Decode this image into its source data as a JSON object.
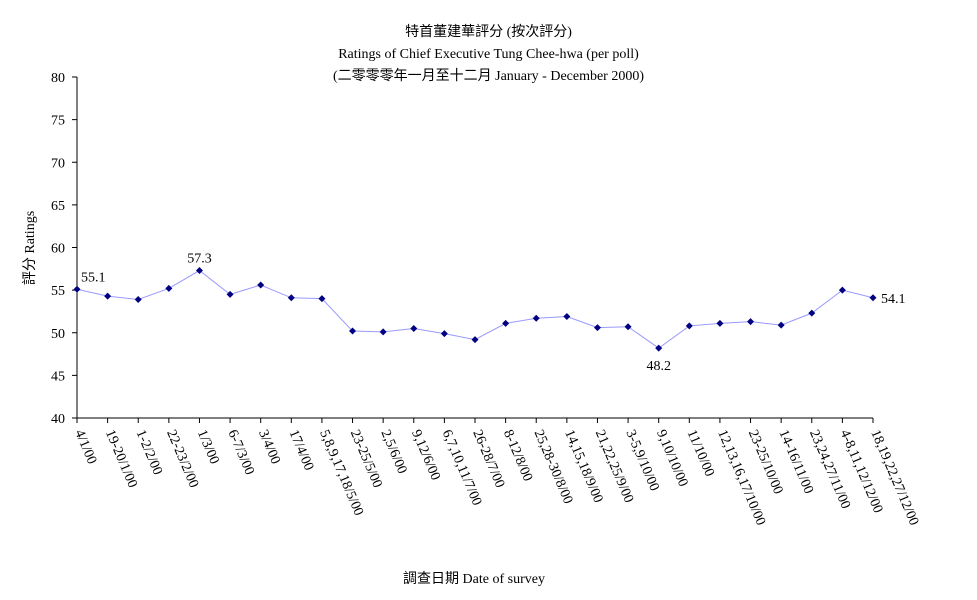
{
  "chart_data": {
    "type": "line",
    "title_zh": "特首董建華評分 (按次評分)",
    "title_en": "Ratings of Chief Executive Tung Chee-hwa (per poll)",
    "subtitle": "(二零零零年一月至十二月 January - December 2000)",
    "xlabel": "調查日期 Date of survey",
    "ylabel": "評分 Ratings",
    "ylim": [
      40,
      80
    ],
    "yticks": [
      40,
      45,
      50,
      55,
      60,
      65,
      70,
      75,
      80
    ],
    "grid": false,
    "series_color": "#9999ff",
    "marker_color": "#000080",
    "categories": [
      "4/1/00",
      "19-20/1/00",
      "1-2/2/00",
      "22-23/2/00",
      "1/3/00",
      "6-7/3/00",
      "3/4/00",
      "17/4/00",
      "5,8,9,17,18/5/00",
      "23-25/5/00",
      "2,5/6/00",
      "9,12/6/00",
      "6,7,10,11/7/00",
      "26-28/7/00",
      "8-12/8/00",
      "25,28-30/8/00",
      "14,15,18/9/00",
      "21,22,25/9/00",
      "3-5,9/10/00",
      "9,10/10/00",
      "11/10/00",
      "12,13,16,17/10/00",
      "23-25/10/00",
      "14-16/11/00",
      "23,24,27/11/00",
      "4-8,11,12/12/00",
      "18,19,22,27/12/00"
    ],
    "values": [
      55.1,
      54.3,
      53.9,
      55.2,
      57.3,
      54.5,
      55.6,
      54.1,
      54.0,
      50.2,
      50.1,
      50.5,
      49.9,
      49.2,
      51.1,
      51.7,
      51.9,
      50.6,
      50.7,
      48.2,
      50.8,
      51.1,
      51.3,
      50.9,
      52.3,
      55.0,
      54.1
    ],
    "data_labels": [
      {
        "index": 0,
        "text": "55.1",
        "position": "above"
      },
      {
        "index": 4,
        "text": "57.3",
        "position": "above"
      },
      {
        "index": 19,
        "text": "48.2",
        "position": "below"
      },
      {
        "index": 26,
        "text": "54.1",
        "position": "right"
      }
    ]
  }
}
